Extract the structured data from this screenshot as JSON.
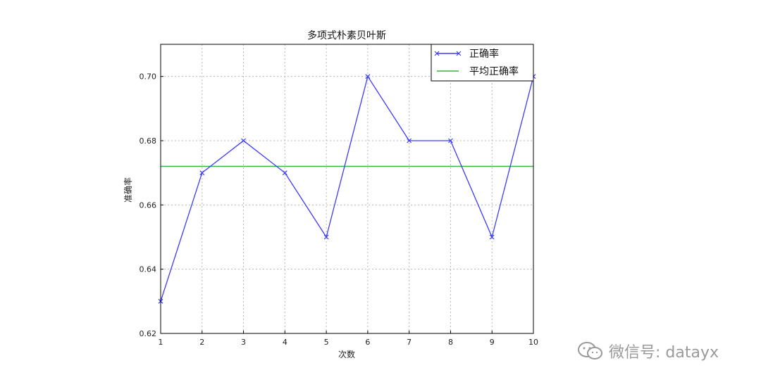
{
  "chart_data": {
    "type": "line",
    "title": "多项式朴素贝叶斯",
    "xlabel": "次数",
    "ylabel": "准确率",
    "x": [
      1,
      2,
      3,
      4,
      5,
      6,
      7,
      8,
      9,
      10
    ],
    "xlim": [
      1,
      10
    ],
    "ylim": [
      0.62,
      0.71
    ],
    "xticks": [
      "1",
      "2",
      "3",
      "4",
      "5",
      "6",
      "7",
      "8",
      "9",
      "10"
    ],
    "yticks": [
      "0.62",
      "0.64",
      "0.66",
      "0.68",
      "0.70"
    ],
    "ytick_values": [
      0.62,
      0.64,
      0.66,
      0.68,
      0.7
    ],
    "grid": true,
    "legend_position": "top-right",
    "series": [
      {
        "name": "正确率",
        "type": "line",
        "marker": "x",
        "color": "#3b3bff",
        "values": [
          0.63,
          0.67,
          0.68,
          0.67,
          0.65,
          0.7,
          0.68,
          0.68,
          0.65,
          0.7
        ]
      },
      {
        "name": "平均正确率",
        "type": "hline",
        "color": "#3cb043",
        "value": 0.672
      }
    ]
  },
  "watermark": {
    "text": "微信号: datayx",
    "icon": "wechat-icon"
  }
}
